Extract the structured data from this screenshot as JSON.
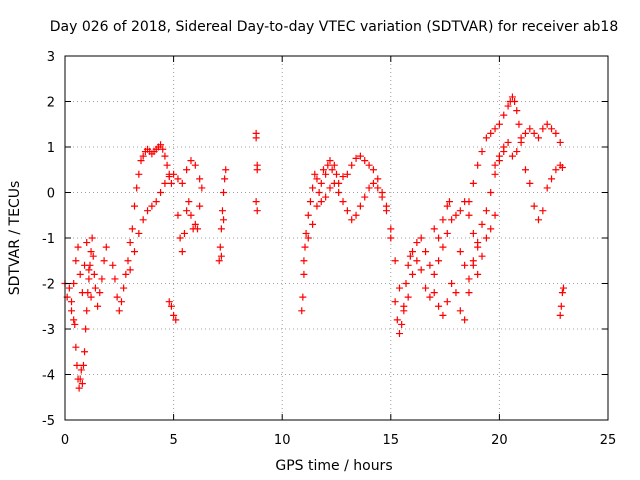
{
  "chart_data": {
    "type": "scatter",
    "title": "Day 026 of 2018, Sidereal Day-to-day VTEC variation (SDTVAR) for receiver ab18",
    "xlabel": "GPS time / hours",
    "ylabel": "SDTVAR / TECUs",
    "xlim": [
      0,
      25
    ],
    "ylim": [
      -5,
      3
    ],
    "xticks": [
      "0",
      "5",
      "10",
      "15",
      "20",
      "25"
    ],
    "yticks": [
      "3",
      "2",
      "1",
      "0",
      "-1",
      "-2",
      "-3",
      "-4",
      "-5"
    ],
    "grid": true,
    "marker": "+",
    "color": "#ff0000",
    "series": [
      {
        "name": "SDTVAR",
        "points": [
          [
            0.0,
            -2.0
          ],
          [
            0.1,
            -2.3
          ],
          [
            0.2,
            -2.1
          ],
          [
            0.3,
            -2.4
          ],
          [
            0.4,
            -2.0
          ],
          [
            0.45,
            -2.9
          ],
          [
            0.5,
            -3.4
          ],
          [
            0.55,
            -3.8
          ],
          [
            0.6,
            -4.1
          ],
          [
            0.65,
            -4.3
          ],
          [
            0.7,
            -4.1
          ],
          [
            0.75,
            -3.9
          ],
          [
            0.8,
            -4.2
          ],
          [
            0.85,
            -3.8
          ],
          [
            0.9,
            -3.5
          ],
          [
            0.95,
            -3.0
          ],
          [
            1.0,
            -2.6
          ],
          [
            1.05,
            -2.2
          ],
          [
            1.1,
            -1.9
          ],
          [
            1.15,
            -1.6
          ],
          [
            1.2,
            -1.3
          ],
          [
            1.25,
            -1.0
          ],
          [
            1.3,
            -1.4
          ],
          [
            1.35,
            -1.8
          ],
          [
            1.4,
            -2.1
          ],
          [
            1.5,
            -2.5
          ],
          [
            1.6,
            -2.2
          ],
          [
            1.7,
            -1.9
          ],
          [
            1.8,
            -1.5
          ],
          [
            1.9,
            -1.2
          ],
          [
            0.5,
            -1.5
          ],
          [
            0.6,
            -1.2
          ],
          [
            0.7,
            -1.8
          ],
          [
            0.8,
            -2.2
          ],
          [
            0.9,
            -1.6
          ],
          [
            1.0,
            -1.1
          ],
          [
            1.1,
            -1.7
          ],
          [
            1.2,
            -2.3
          ],
          [
            0.3,
            -2.6
          ],
          [
            0.4,
            -2.8
          ],
          [
            2.2,
            -1.6
          ],
          [
            2.3,
            -1.9
          ],
          [
            2.4,
            -2.3
          ],
          [
            2.5,
            -2.6
          ],
          [
            2.6,
            -2.4
          ],
          [
            2.7,
            -2.1
          ],
          [
            2.8,
            -1.8
          ],
          [
            2.9,
            -1.5
          ],
          [
            3.0,
            -1.1
          ],
          [
            3.1,
            -0.8
          ],
          [
            3.2,
            -0.3
          ],
          [
            3.3,
            0.1
          ],
          [
            3.4,
            0.4
          ],
          [
            3.5,
            0.7
          ],
          [
            3.6,
            0.8
          ],
          [
            3.7,
            0.9
          ],
          [
            3.8,
            0.95
          ],
          [
            3.9,
            0.9
          ],
          [
            4.0,
            0.85
          ],
          [
            4.1,
            0.9
          ],
          [
            4.2,
            0.95
          ],
          [
            4.3,
            1.0
          ],
          [
            4.4,
            1.05
          ],
          [
            4.5,
            0.95
          ],
          [
            4.6,
            0.8
          ],
          [
            4.7,
            0.6
          ],
          [
            4.8,
            0.4
          ],
          [
            4.9,
            0.2
          ],
          [
            3.0,
            -1.7
          ],
          [
            3.2,
            -1.3
          ],
          [
            3.4,
            -0.9
          ],
          [
            3.6,
            -0.6
          ],
          [
            3.8,
            -0.4
          ],
          [
            4.0,
            -0.3
          ],
          [
            4.2,
            -0.2
          ],
          [
            4.4,
            0.0
          ],
          [
            4.6,
            0.2
          ],
          [
            4.8,
            0.35
          ],
          [
            5.0,
            0.4
          ],
          [
            5.2,
            0.3
          ],
          [
            5.4,
            0.2
          ],
          [
            5.6,
            0.5
          ],
          [
            5.8,
            0.7
          ],
          [
            6.0,
            0.6
          ],
          [
            6.2,
            0.3
          ],
          [
            6.3,
            0.1
          ],
          [
            4.8,
            -2.4
          ],
          [
            4.9,
            -2.5
          ],
          [
            5.0,
            -2.7
          ],
          [
            5.1,
            -2.8
          ],
          [
            5.2,
            -0.5
          ],
          [
            5.3,
            -1.0
          ],
          [
            5.4,
            -1.3
          ],
          [
            5.5,
            -0.9
          ],
          [
            5.6,
            -0.4
          ],
          [
            5.7,
            -0.2
          ],
          [
            5.8,
            -0.5
          ],
          [
            5.9,
            -0.8
          ],
          [
            6.0,
            -0.7
          ],
          [
            6.1,
            -0.8
          ],
          [
            6.2,
            -0.3
          ],
          [
            7.1,
            -1.5
          ],
          [
            7.15,
            -1.2
          ],
          [
            7.2,
            -0.8
          ],
          [
            7.25,
            -0.4
          ],
          [
            7.3,
            0.0
          ],
          [
            7.35,
            0.3
          ],
          [
            7.4,
            0.5
          ],
          [
            7.2,
            -1.4
          ],
          [
            7.3,
            -0.6
          ],
          [
            8.8,
            1.3
          ],
          [
            8.8,
            1.2
          ],
          [
            8.85,
            0.6
          ],
          [
            8.85,
            0.5
          ],
          [
            8.8,
            -0.2
          ],
          [
            8.85,
            -0.4
          ],
          [
            10.9,
            -2.6
          ],
          [
            10.95,
            -2.3
          ],
          [
            11.0,
            -1.8
          ],
          [
            11.05,
            -1.2
          ],
          [
            11.1,
            -0.9
          ],
          [
            11.2,
            -0.5
          ],
          [
            11.3,
            -0.2
          ],
          [
            11.4,
            0.1
          ],
          [
            11.5,
            0.4
          ],
          [
            11.6,
            0.3
          ],
          [
            11.7,
            0.0
          ],
          [
            11.8,
            0.2
          ],
          [
            11.9,
            0.5
          ],
          [
            12.0,
            0.4
          ],
          [
            12.1,
            0.6
          ],
          [
            12.2,
            0.7
          ],
          [
            12.3,
            0.5
          ],
          [
            12.4,
            0.6
          ],
          [
            12.5,
            0.4
          ],
          [
            12.6,
            0.2
          ],
          [
            12.8,
            0.35
          ],
          [
            13.0,
            0.4
          ],
          [
            13.2,
            0.6
          ],
          [
            13.4,
            0.75
          ],
          [
            13.6,
            0.8
          ],
          [
            13.8,
            0.7
          ],
          [
            14.0,
            0.6
          ],
          [
            14.2,
            0.5
          ],
          [
            14.4,
            0.3
          ],
          [
            14.6,
            0.0
          ],
          [
            14.8,
            -0.4
          ],
          [
            15.0,
            -1.0
          ],
          [
            11.0,
            -1.5
          ],
          [
            11.2,
            -1.0
          ],
          [
            11.4,
            -0.7
          ],
          [
            11.6,
            -0.3
          ],
          [
            11.8,
            -0.2
          ],
          [
            12.0,
            -0.1
          ],
          [
            12.2,
            0.1
          ],
          [
            12.4,
            0.2
          ],
          [
            12.6,
            0.0
          ],
          [
            12.8,
            -0.2
          ],
          [
            13.0,
            -0.4
          ],
          [
            13.2,
            -0.6
          ],
          [
            13.4,
            -0.5
          ],
          [
            13.6,
            -0.3
          ],
          [
            13.8,
            -0.1
          ],
          [
            14.0,
            0.1
          ],
          [
            14.2,
            0.2
          ],
          [
            14.4,
            0.1
          ],
          [
            14.6,
            -0.1
          ],
          [
            14.8,
            -0.3
          ],
          [
            15.0,
            -0.8
          ],
          [
            15.2,
            -1.5
          ],
          [
            15.4,
            -2.1
          ],
          [
            15.6,
            -2.6
          ],
          [
            15.8,
            -2.3
          ],
          [
            16.0,
            -1.8
          ],
          [
            16.2,
            -1.5
          ],
          [
            16.4,
            -1.7
          ],
          [
            15.2,
            -2.4
          ],
          [
            15.3,
            -2.8
          ],
          [
            15.4,
            -3.1
          ],
          [
            15.5,
            -2.9
          ],
          [
            15.6,
            -2.5
          ],
          [
            15.7,
            -2.0
          ],
          [
            15.8,
            -1.6
          ],
          [
            15.9,
            -1.4
          ],
          [
            16.0,
            -1.3
          ],
          [
            16.2,
            -1.1
          ],
          [
            16.4,
            -1.0
          ],
          [
            16.6,
            -1.3
          ],
          [
            16.8,
            -1.6
          ],
          [
            17.0,
            -1.8
          ],
          [
            17.2,
            -1.5
          ],
          [
            17.4,
            -1.2
          ],
          [
            17.6,
            -0.9
          ],
          [
            17.8,
            -0.6
          ],
          [
            18.0,
            -0.5
          ],
          [
            18.2,
            -0.4
          ],
          [
            18.4,
            -0.2
          ],
          [
            18.6,
            -0.5
          ],
          [
            18.8,
            -0.9
          ],
          [
            19.0,
            -1.2
          ],
          [
            16.6,
            -2.1
          ],
          [
            16.8,
            -2.3
          ],
          [
            17.0,
            -2.2
          ],
          [
            17.2,
            -2.5
          ],
          [
            17.4,
            -2.7
          ],
          [
            17.6,
            -2.4
          ],
          [
            17.8,
            -2.0
          ],
          [
            18.0,
            -2.2
          ],
          [
            18.2,
            -2.6
          ],
          [
            18.4,
            -2.8
          ],
          [
            18.6,
            -2.2
          ],
          [
            18.8,
            -1.6
          ],
          [
            19.0,
            -1.1
          ],
          [
            19.2,
            -0.7
          ],
          [
            19.4,
            -0.4
          ],
          [
            19.6,
            0.0
          ],
          [
            19.8,
            0.4
          ],
          [
            20.0,
            0.7
          ],
          [
            20.2,
            0.9
          ],
          [
            17.0,
            -0.8
          ],
          [
            17.2,
            -1.0
          ],
          [
            17.4,
            -0.6
          ],
          [
            17.6,
            -0.3
          ],
          [
            17.7,
            -0.2
          ],
          [
            18.2,
            -1.3
          ],
          [
            18.4,
            -1.6
          ],
          [
            18.6,
            -1.9
          ],
          [
            18.8,
            -1.5
          ],
          [
            19.0,
            -1.8
          ],
          [
            19.2,
            -1.4
          ],
          [
            19.4,
            -1.0
          ],
          [
            19.6,
            -0.8
          ],
          [
            19.8,
            -0.5
          ],
          [
            18.6,
            -0.2
          ],
          [
            18.8,
            0.2
          ],
          [
            19.0,
            0.6
          ],
          [
            19.2,
            0.9
          ],
          [
            19.4,
            1.2
          ],
          [
            19.6,
            1.3
          ],
          [
            19.8,
            1.4
          ],
          [
            20.0,
            1.5
          ],
          [
            20.2,
            1.7
          ],
          [
            20.4,
            1.9
          ],
          [
            20.5,
            2.0
          ],
          [
            20.6,
            2.1
          ],
          [
            20.7,
            2.0
          ],
          [
            20.8,
            1.8
          ],
          [
            20.9,
            1.5
          ],
          [
            21.0,
            1.2
          ],
          [
            19.8,
            0.6
          ],
          [
            20.0,
            0.8
          ],
          [
            20.2,
            1.0
          ],
          [
            20.4,
            1.1
          ],
          [
            20.6,
            0.8
          ],
          [
            20.8,
            0.9
          ],
          [
            21.0,
            1.1
          ],
          [
            21.2,
            1.3
          ],
          [
            21.4,
            1.4
          ],
          [
            21.6,
            1.3
          ],
          [
            21.8,
            1.2
          ],
          [
            22.0,
            1.4
          ],
          [
            22.2,
            1.5
          ],
          [
            22.4,
            1.4
          ],
          [
            22.6,
            1.3
          ],
          [
            22.8,
            1.1
          ],
          [
            21.2,
            0.5
          ],
          [
            21.4,
            0.2
          ],
          [
            21.6,
            -0.3
          ],
          [
            21.8,
            -0.6
          ],
          [
            22.0,
            -0.4
          ],
          [
            22.2,
            0.1
          ],
          [
            22.4,
            0.3
          ],
          [
            22.6,
            0.5
          ],
          [
            22.8,
            0.6
          ],
          [
            22.9,
            0.55
          ],
          [
            22.8,
            -2.7
          ],
          [
            22.85,
            -2.5
          ],
          [
            22.9,
            -2.2
          ],
          [
            22.95,
            -2.1
          ]
        ]
      }
    ]
  }
}
